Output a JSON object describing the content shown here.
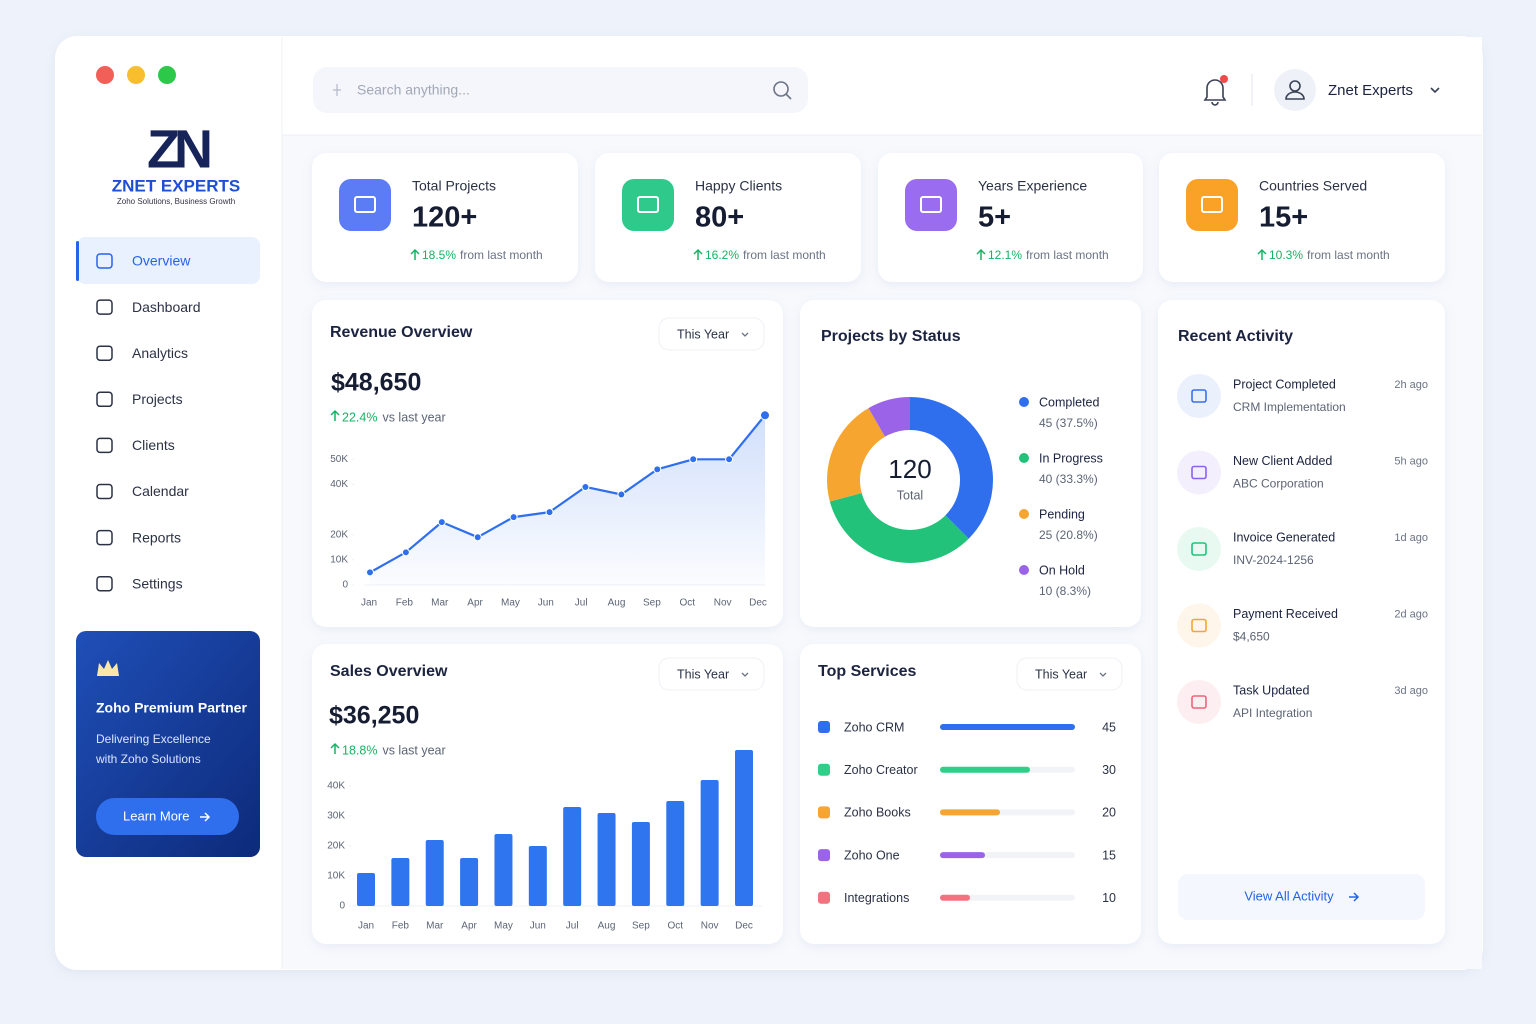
{
  "window": {
    "brand": {
      "logo": "ZN",
      "name": "ZNET EXPERTS",
      "tagline": "Zoho Solutions, Business Growth"
    }
  },
  "nav": [
    {
      "label": "Overview",
      "active": true
    },
    {
      "label": "Dashboard",
      "active": false
    },
    {
      "label": "Analytics",
      "active": false
    },
    {
      "label": "Projects",
      "active": false
    },
    {
      "label": "Clients",
      "active": false
    },
    {
      "label": "Calendar",
      "active": false
    },
    {
      "label": "Reports",
      "active": false
    },
    {
      "label": "Settings",
      "active": false
    }
  ],
  "promo": {
    "title": "Zoho Premium Partner",
    "lines": [
      "Delivering Excellence",
      "with Zoho Solutions"
    ],
    "button": "Learn More"
  },
  "header": {
    "search_placeholder": "Search anything...",
    "user": "Znet Experts"
  },
  "stats": [
    {
      "title": "Total Projects",
      "value": "120+",
      "change": "18.5%",
      "note": "from last month",
      "color": "#5b7cf5"
    },
    {
      "title": "Happy Clients",
      "value": "80+",
      "change": "16.2%",
      "note": "from last month",
      "color": "#2fc98b"
    },
    {
      "title": "Years Experience",
      "value": "5+",
      "change": "12.1%",
      "note": "from last month",
      "color": "#9a6cf0"
    },
    {
      "title": "Countries Served",
      "value": "15+",
      "change": "10.3%",
      "note": "from last month",
      "color": "#f9a227"
    }
  ],
  "chart_data": [
    {
      "type": "line",
      "title": "Revenue Overview",
      "period": "This Year",
      "total": "$48,650",
      "change": "22.4%",
      "change_note": "vs last year",
      "categories": [
        "Jan",
        "Feb",
        "Mar",
        "Apr",
        "May",
        "Jun",
        "Jul",
        "Aug",
        "Sep",
        "Oct",
        "Nov",
        "Dec"
      ],
      "values": [
        5000,
        13000,
        25000,
        19000,
        27000,
        29000,
        39000,
        36000,
        46000,
        50000,
        50000,
        67500
      ],
      "color": "#2f6fed",
      "ylim": [
        0,
        70000
      ],
      "yticks": [
        0,
        {
          "value": 10000,
          "label": "10K"
        },
        {
          "value": 20000,
          "label": "20K"
        },
        {
          "value": 40000,
          "label": "40K"
        },
        {
          "value": 50000,
          "label": "50K"
        }
      ]
    },
    {
      "type": "pie",
      "title": "Projects by Status",
      "center_value": "120",
      "center_label": "Total",
      "categories": [
        "Completed",
        "In Progress",
        "Pending",
        "On Hold"
      ],
      "values": [
        45,
        40,
        25,
        10
      ],
      "value_labels": [
        "45 (37.5%)",
        "40 (33.3%)",
        "25 (20.8%)",
        "10 (8.3%)"
      ],
      "colors": [
        "#2f6fed",
        "#22c27a",
        "#f7a531",
        "#9b63e8"
      ]
    },
    {
      "type": "bar",
      "title": "Sales Overview",
      "period": "This Year",
      "total": "$36,250",
      "change": "18.8%",
      "change_note": "vs last year",
      "categories": [
        "Jan",
        "Feb",
        "Mar",
        "Apr",
        "May",
        "Jun",
        "Jul",
        "Aug",
        "Sep",
        "Oct",
        "Nov",
        "Dec"
      ],
      "values": [
        11000,
        16000,
        22000,
        16000,
        24000,
        20000,
        33000,
        31000,
        28000,
        35000,
        42000,
        52000
      ],
      "color": "#2f75f0",
      "ylim": [
        0,
        55000
      ],
      "yticks": [
        0,
        {
          "value": 10000,
          "label": "10K"
        },
        {
          "value": 20000,
          "label": "20K"
        },
        {
          "value": 30000,
          "label": "30K"
        },
        {
          "value": 40000,
          "label": "40K"
        }
      ]
    },
    {
      "type": "hbar",
      "title": "Top Services",
      "period": "This Year",
      "categories": [
        "Zoho CRM",
        "Zoho Creator",
        "Zoho Books",
        "Zoho One",
        "Integrations"
      ],
      "values": [
        45,
        30,
        20,
        15,
        10
      ],
      "xlim": [
        0,
        45
      ],
      "colors": [
        "#2f6fed",
        "#2fcf8a",
        "#f7a531",
        "#9b63e8",
        "#f2727f"
      ]
    }
  ],
  "activity": {
    "title": "Recent Activity",
    "link": "View All Activity",
    "items": [
      {
        "title": "Project Completed",
        "detail": "CRM Implementation",
        "time": "2h ago",
        "color": "#3b6ff0"
      },
      {
        "title": "New Client Added",
        "detail": "ABC Corporation",
        "time": "5h ago",
        "color": "#8a63e8"
      },
      {
        "title": "Invoice Generated",
        "detail": "INV-2024-1256",
        "time": "1d ago",
        "color": "#22c27a"
      },
      {
        "title": "Payment Received",
        "detail": "$4,650",
        "time": "2d ago",
        "color": "#f7a531"
      },
      {
        "title": "Task Updated",
        "detail": "API Integration",
        "time": "3d ago",
        "color": "#f0627a"
      }
    ]
  }
}
